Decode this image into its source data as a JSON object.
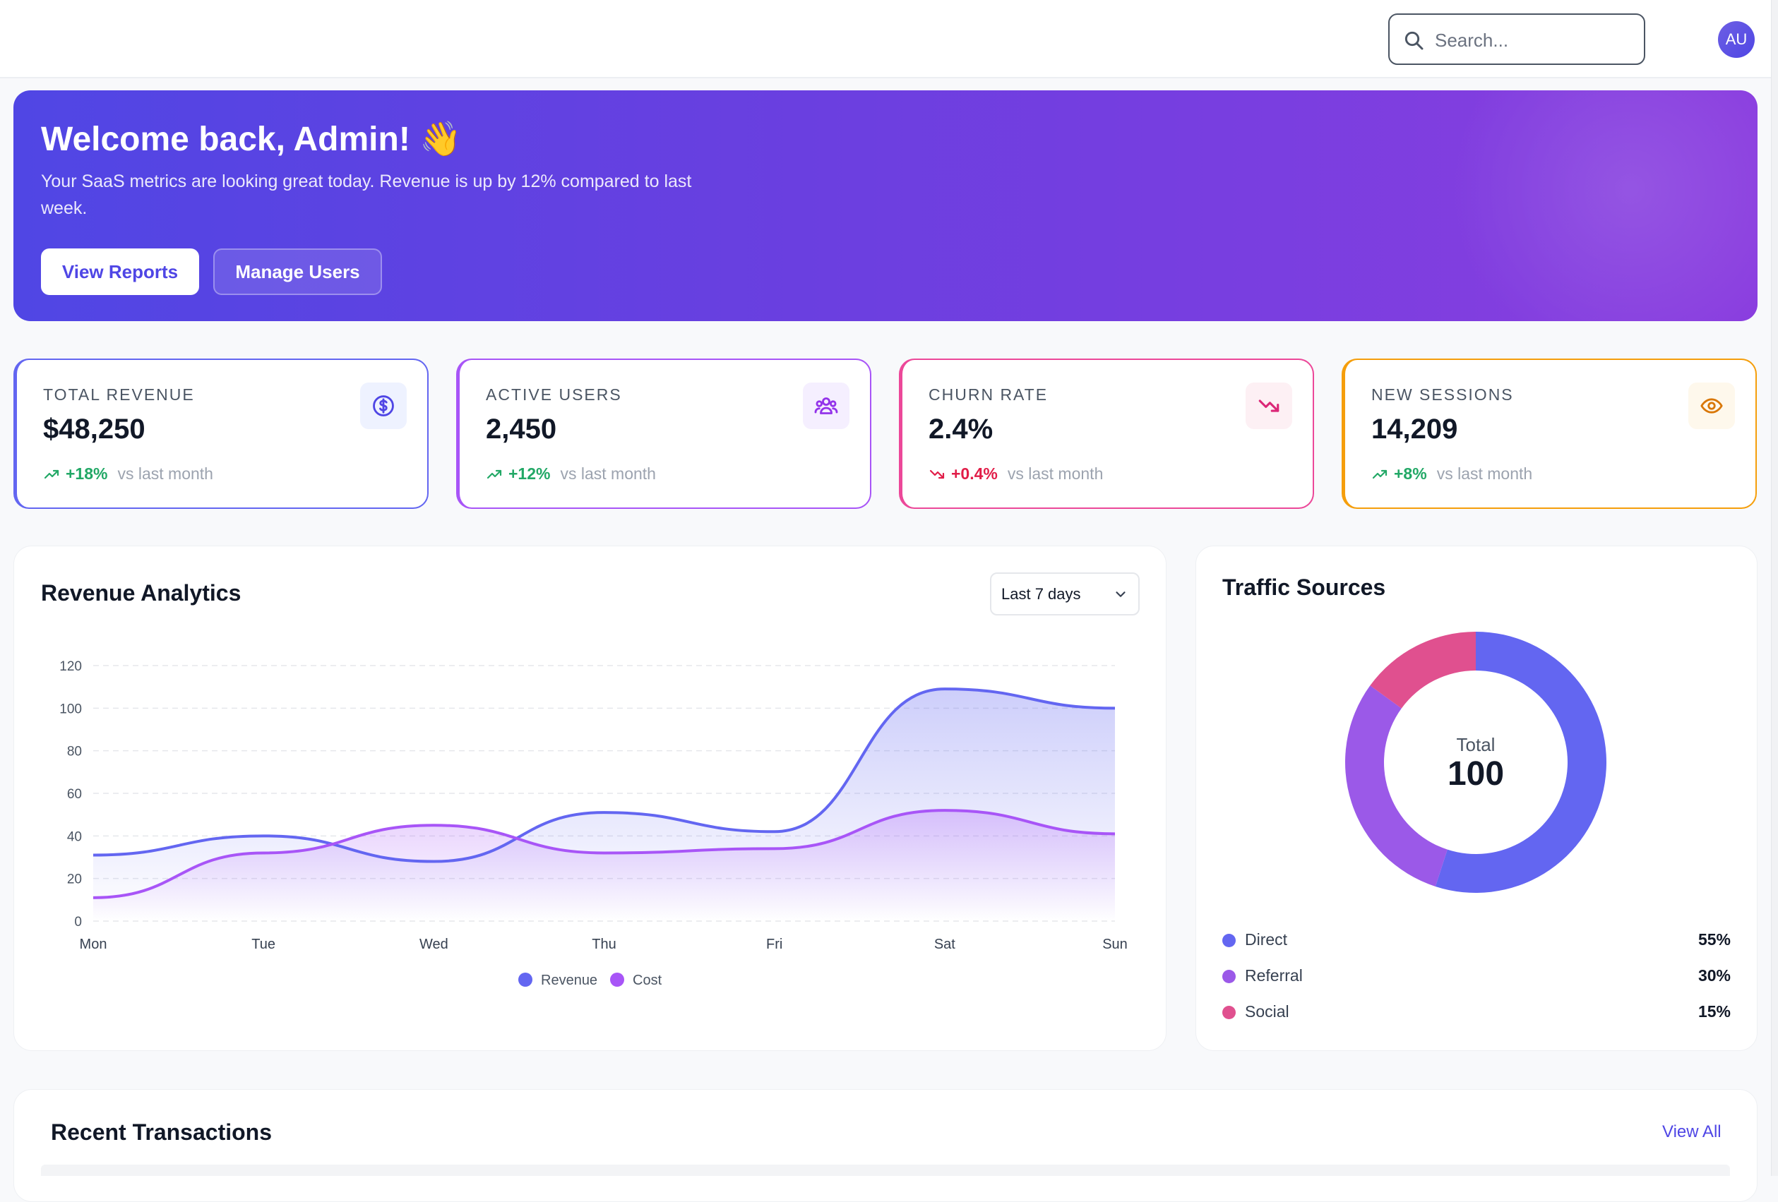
{
  "search": {
    "placeholder": "Search..."
  },
  "user": {
    "avatar_initials": "AU"
  },
  "hero": {
    "title": "Welcome back, Admin! 👋",
    "subtitle": "Your SaaS metrics are looking great today. Revenue is up by 12% compared to last week.",
    "primary_button": "View Reports",
    "secondary_button": "Manage Users"
  },
  "stats": [
    {
      "label": "TOTAL REVENUE",
      "value": "$48,250",
      "delta": "+18%",
      "vs": "vs last month",
      "icon": "dollar-icon",
      "trend": "up",
      "color": "#6366f1"
    },
    {
      "label": "ACTIVE USERS",
      "value": "2,450",
      "delta": "+12%",
      "vs": "vs last month",
      "icon": "users-icon",
      "trend": "up",
      "color": "#a855f7"
    },
    {
      "label": "CHURN RATE",
      "value": "2.4%",
      "delta": "+0.4%",
      "vs": "vs last month",
      "icon": "trending-down-icon",
      "trend": "down",
      "color": "#ec4899"
    },
    {
      "label": "NEW SESSIONS",
      "value": "14,209",
      "delta": "+8%",
      "vs": "vs last month",
      "icon": "eye-icon",
      "trend": "up",
      "color": "#f59e0b"
    }
  ],
  "revenue": {
    "title": "Revenue Analytics",
    "range_select": "Last 7 days"
  },
  "chart_data": {
    "type": "area",
    "categories": [
      "Mon",
      "Tue",
      "Wed",
      "Thu",
      "Fri",
      "Sat",
      "Sun"
    ],
    "series": [
      {
        "name": "Revenue",
        "values": [
          31,
          40,
          28,
          51,
          42,
          109,
          100
        ],
        "color": "#6366f1"
      },
      {
        "name": "Cost",
        "values": [
          11,
          32,
          45,
          32,
          34,
          52,
          41
        ],
        "color": "#a855f7"
      }
    ],
    "ylim": [
      0,
      120
    ],
    "yticks": [
      0,
      20,
      40,
      60,
      80,
      100,
      120
    ],
    "grid": true,
    "legend": "bottom-center"
  },
  "traffic": {
    "title": "Traffic Sources",
    "center_label": "Total",
    "center_value": "100",
    "sources": [
      {
        "name": "Direct",
        "pct": "55%",
        "value": 55,
        "color": "#6366f1"
      },
      {
        "name": "Referral",
        "pct": "30%",
        "value": 30,
        "color": "#9b59e8"
      },
      {
        "name": "Social",
        "pct": "15%",
        "value": 15,
        "color": "#e0508f"
      }
    ]
  },
  "transactions": {
    "title": "Recent Transactions",
    "view_all": "View All"
  }
}
